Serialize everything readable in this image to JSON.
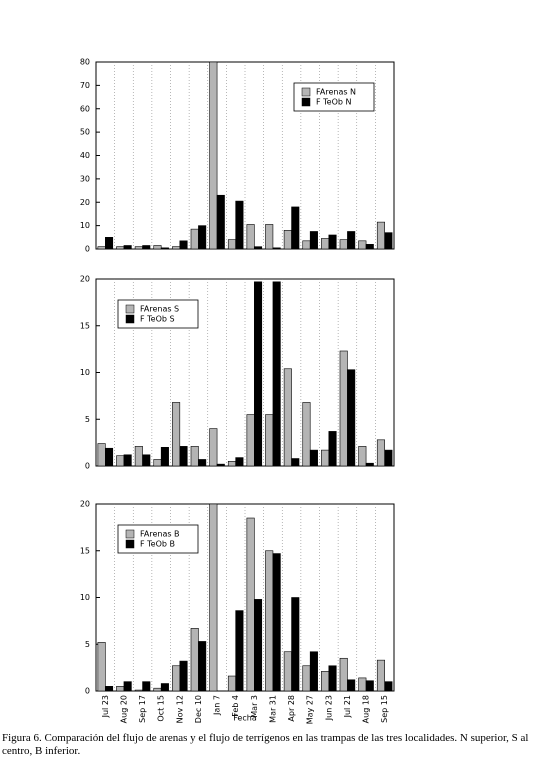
{
  "chart_data": [
    {
      "type": "bar",
      "ylim": [
        0,
        80
      ],
      "yticks": [
        0,
        10,
        20,
        30,
        40,
        50,
        60,
        70,
        80
      ],
      "legend_position": "upper right",
      "grid": true,
      "series": [
        {
          "name": "FArenas N",
          "color": "#b4b4b4",
          "values": [
            1,
            1,
            1,
            1.5,
            1,
            8.5,
            80,
            4,
            10.5,
            10.5,
            8,
            3.5,
            4.5,
            4,
            3.5,
            11.5
          ]
        },
        {
          "name": "F TeOb N",
          "color": "#000000",
          "values": [
            5,
            1.5,
            1.5,
            0.5,
            3.5,
            10,
            23,
            20.5,
            1,
            0.5,
            18,
            7.5,
            6,
            7.5,
            2,
            7
          ]
        }
      ]
    },
    {
      "type": "bar",
      "ylim": [
        0,
        20
      ],
      "yticks": [
        0,
        5,
        10,
        15,
        20
      ],
      "legend_position": "upper left",
      "grid": true,
      "series": [
        {
          "name": "FArenas S",
          "color": "#b4b4b4",
          "values": [
            2.4,
            1.1,
            2.1,
            0.7,
            6.8,
            2.1,
            4,
            0.5,
            5.5,
            5.5,
            10.4,
            6.8,
            1.7,
            12.3,
            2.1,
            2.8
          ]
        },
        {
          "name": "F TeOb S",
          "color": "#000000",
          "values": [
            1.9,
            1.2,
            1.2,
            2,
            2.1,
            0.7,
            0.2,
            0.9,
            19.7,
            19.7,
            0.8,
            1.7,
            3.7,
            10.3,
            0.3,
            1.7
          ]
        }
      ]
    },
    {
      "type": "bar",
      "ylim": [
        0,
        20
      ],
      "yticks": [
        0,
        5,
        10,
        15,
        20
      ],
      "legend_position": "upper left",
      "grid": true,
      "x_label": "Fecha",
      "categories": [
        "Jul 23",
        "Aug 20",
        "Sep 17",
        "Oct 15",
        "Nov 12",
        "Dec 10",
        "Jan 7",
        "Feb 4",
        "Mar 3",
        "Mar 31",
        "Apr 28",
        "May 27",
        "Jun 23",
        "Jul 21",
        "Aug 18",
        "Sep 15"
      ],
      "series": [
        {
          "name": "FArenas B",
          "color": "#b4b4b4",
          "values": [
            5.2,
            0.5,
            0.1,
            0.3,
            2.7,
            6.7,
            20,
            1.6,
            18.5,
            15,
            4.2,
            2.7,
            2.1,
            3.5,
            1.4,
            3.3
          ]
        },
        {
          "name": "F TeOb B",
          "color": "#000000",
          "values": [
            0.5,
            1,
            1,
            0.8,
            3.2,
            5.3,
            0,
            8.6,
            9.8,
            14.7,
            10,
            4.2,
            2.7,
            1.2,
            1.1,
            1
          ]
        }
      ]
    }
  ],
  "caption": "Figura 6. Comparación del flujo de arenas y el flujo de terrígenos en las trampas de las tres localidades. N superior, S al centro, B inferior."
}
